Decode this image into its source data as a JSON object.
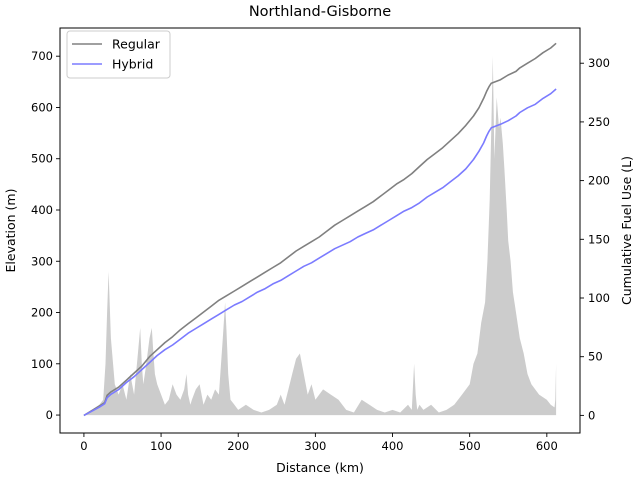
{
  "chart_data": {
    "type": "line",
    "title": "Northland-Gisborne",
    "xlabel": "Distance (km)",
    "ylabel_left": "Elevation (m)",
    "ylabel_right": "Cumulative Fuel Use (L)",
    "xlim": [
      -31,
      643
    ],
    "ylim_left": [
      -35,
      755
    ],
    "ylim_right": [
      -15,
      330
    ],
    "xticks": [
      0,
      100,
      200,
      300,
      400,
      500,
      600
    ],
    "yticks_left": [
      0,
      100,
      200,
      300,
      400,
      500,
      600,
      700
    ],
    "yticks_right": [
      0,
      50,
      100,
      150,
      200,
      250,
      300
    ],
    "grid": false,
    "legend": {
      "position": "top-left",
      "entries": [
        "Regular",
        "Hybrid"
      ]
    },
    "elevation_profile": {
      "color": "#cccccc",
      "x": [
        0,
        10,
        20,
        25,
        28,
        30,
        32,
        35,
        40,
        45,
        50,
        55,
        60,
        65,
        70,
        73,
        75,
        77,
        80,
        85,
        88,
        90,
        92,
        95,
        100,
        105,
        110,
        115,
        120,
        125,
        130,
        133,
        135,
        138,
        140,
        145,
        150,
        155,
        160,
        165,
        170,
        175,
        180,
        183,
        185,
        187,
        190,
        195,
        200,
        210,
        220,
        230,
        240,
        250,
        255,
        260,
        265,
        270,
        275,
        280,
        285,
        290,
        295,
        300,
        310,
        320,
        330,
        340,
        350,
        360,
        370,
        380,
        390,
        400,
        410,
        420,
        425,
        428,
        430,
        432,
        435,
        440,
        450,
        460,
        470,
        480,
        490,
        500,
        505,
        510,
        515,
        520,
        523,
        526,
        528,
        530,
        532,
        535,
        538,
        540,
        543,
        545,
        548,
        550,
        553,
        556,
        560,
        565,
        570,
        575,
        580,
        590,
        600,
        605,
        610,
        611,
        612
      ],
      "values": [
        0,
        10,
        20,
        30,
        100,
        200,
        280,
        150,
        60,
        40,
        60,
        30,
        80,
        40,
        120,
        170,
        100,
        60,
        90,
        150,
        170,
        120,
        80,
        60,
        40,
        20,
        30,
        60,
        40,
        30,
        50,
        80,
        40,
        20,
        30,
        50,
        60,
        20,
        40,
        30,
        50,
        40,
        150,
        220,
        160,
        80,
        30,
        20,
        10,
        20,
        10,
        5,
        10,
        20,
        40,
        20,
        50,
        80,
        110,
        120,
        80,
        40,
        60,
        30,
        50,
        40,
        30,
        10,
        5,
        30,
        20,
        10,
        5,
        10,
        5,
        20,
        10,
        100,
        40,
        10,
        20,
        10,
        20,
        5,
        10,
        20,
        40,
        60,
        100,
        120,
        180,
        220,
        300,
        420,
        560,
        700,
        500,
        620,
        560,
        580,
        530,
        480,
        400,
        340,
        300,
        240,
        200,
        150,
        120,
        80,
        60,
        40,
        30,
        20,
        15,
        30,
        100
      ]
    },
    "x": [
      0,
      20,
      27,
      30,
      35,
      45,
      55,
      65,
      75,
      85,
      95,
      105,
      115,
      125,
      135,
      145,
      155,
      165,
      175,
      185,
      195,
      205,
      215,
      225,
      235,
      245,
      255,
      265,
      275,
      285,
      295,
      305,
      315,
      325,
      335,
      345,
      355,
      365,
      375,
      385,
      395,
      405,
      415,
      425,
      435,
      445,
      455,
      465,
      475,
      485,
      495,
      505,
      512,
      518,
      522,
      525,
      528,
      540,
      550,
      560,
      565,
      575,
      585,
      595,
      605,
      612
    ],
    "series": [
      {
        "name": "Regular",
        "color": "#808080",
        "values": [
          0,
          8,
          11,
          17,
          20,
          24,
          30,
          36,
          42,
          50,
          56,
          62,
          67,
          73,
          78,
          83,
          88,
          93,
          98,
          102,
          106,
          110,
          114,
          118,
          122,
          126,
          130,
          135,
          140,
          144,
          148,
          152,
          157,
          162,
          166,
          170,
          174,
          178,
          182,
          187,
          192,
          197,
          201,
          206,
          212,
          218,
          223,
          228,
          234,
          240,
          247,
          255,
          262,
          270,
          276,
          280,
          283,
          286,
          290,
          293,
          296,
          300,
          304,
          309,
          313,
          317
        ]
      },
      {
        "name": "Hybrid",
        "color": "#7b7bff",
        "values": [
          0,
          7,
          10,
          15,
          18,
          22,
          28,
          33,
          39,
          45,
          51,
          56,
          60,
          65,
          70,
          74,
          78,
          82,
          86,
          90,
          94,
          97,
          101,
          105,
          108,
          112,
          115,
          119,
          123,
          127,
          130,
          134,
          138,
          142,
          145,
          148,
          152,
          155,
          158,
          162,
          166,
          170,
          174,
          177,
          181,
          186,
          190,
          194,
          199,
          204,
          210,
          218,
          225,
          232,
          238,
          242,
          245,
          248,
          251,
          255,
          258,
          262,
          265,
          270,
          274,
          278
        ]
      }
    ]
  }
}
